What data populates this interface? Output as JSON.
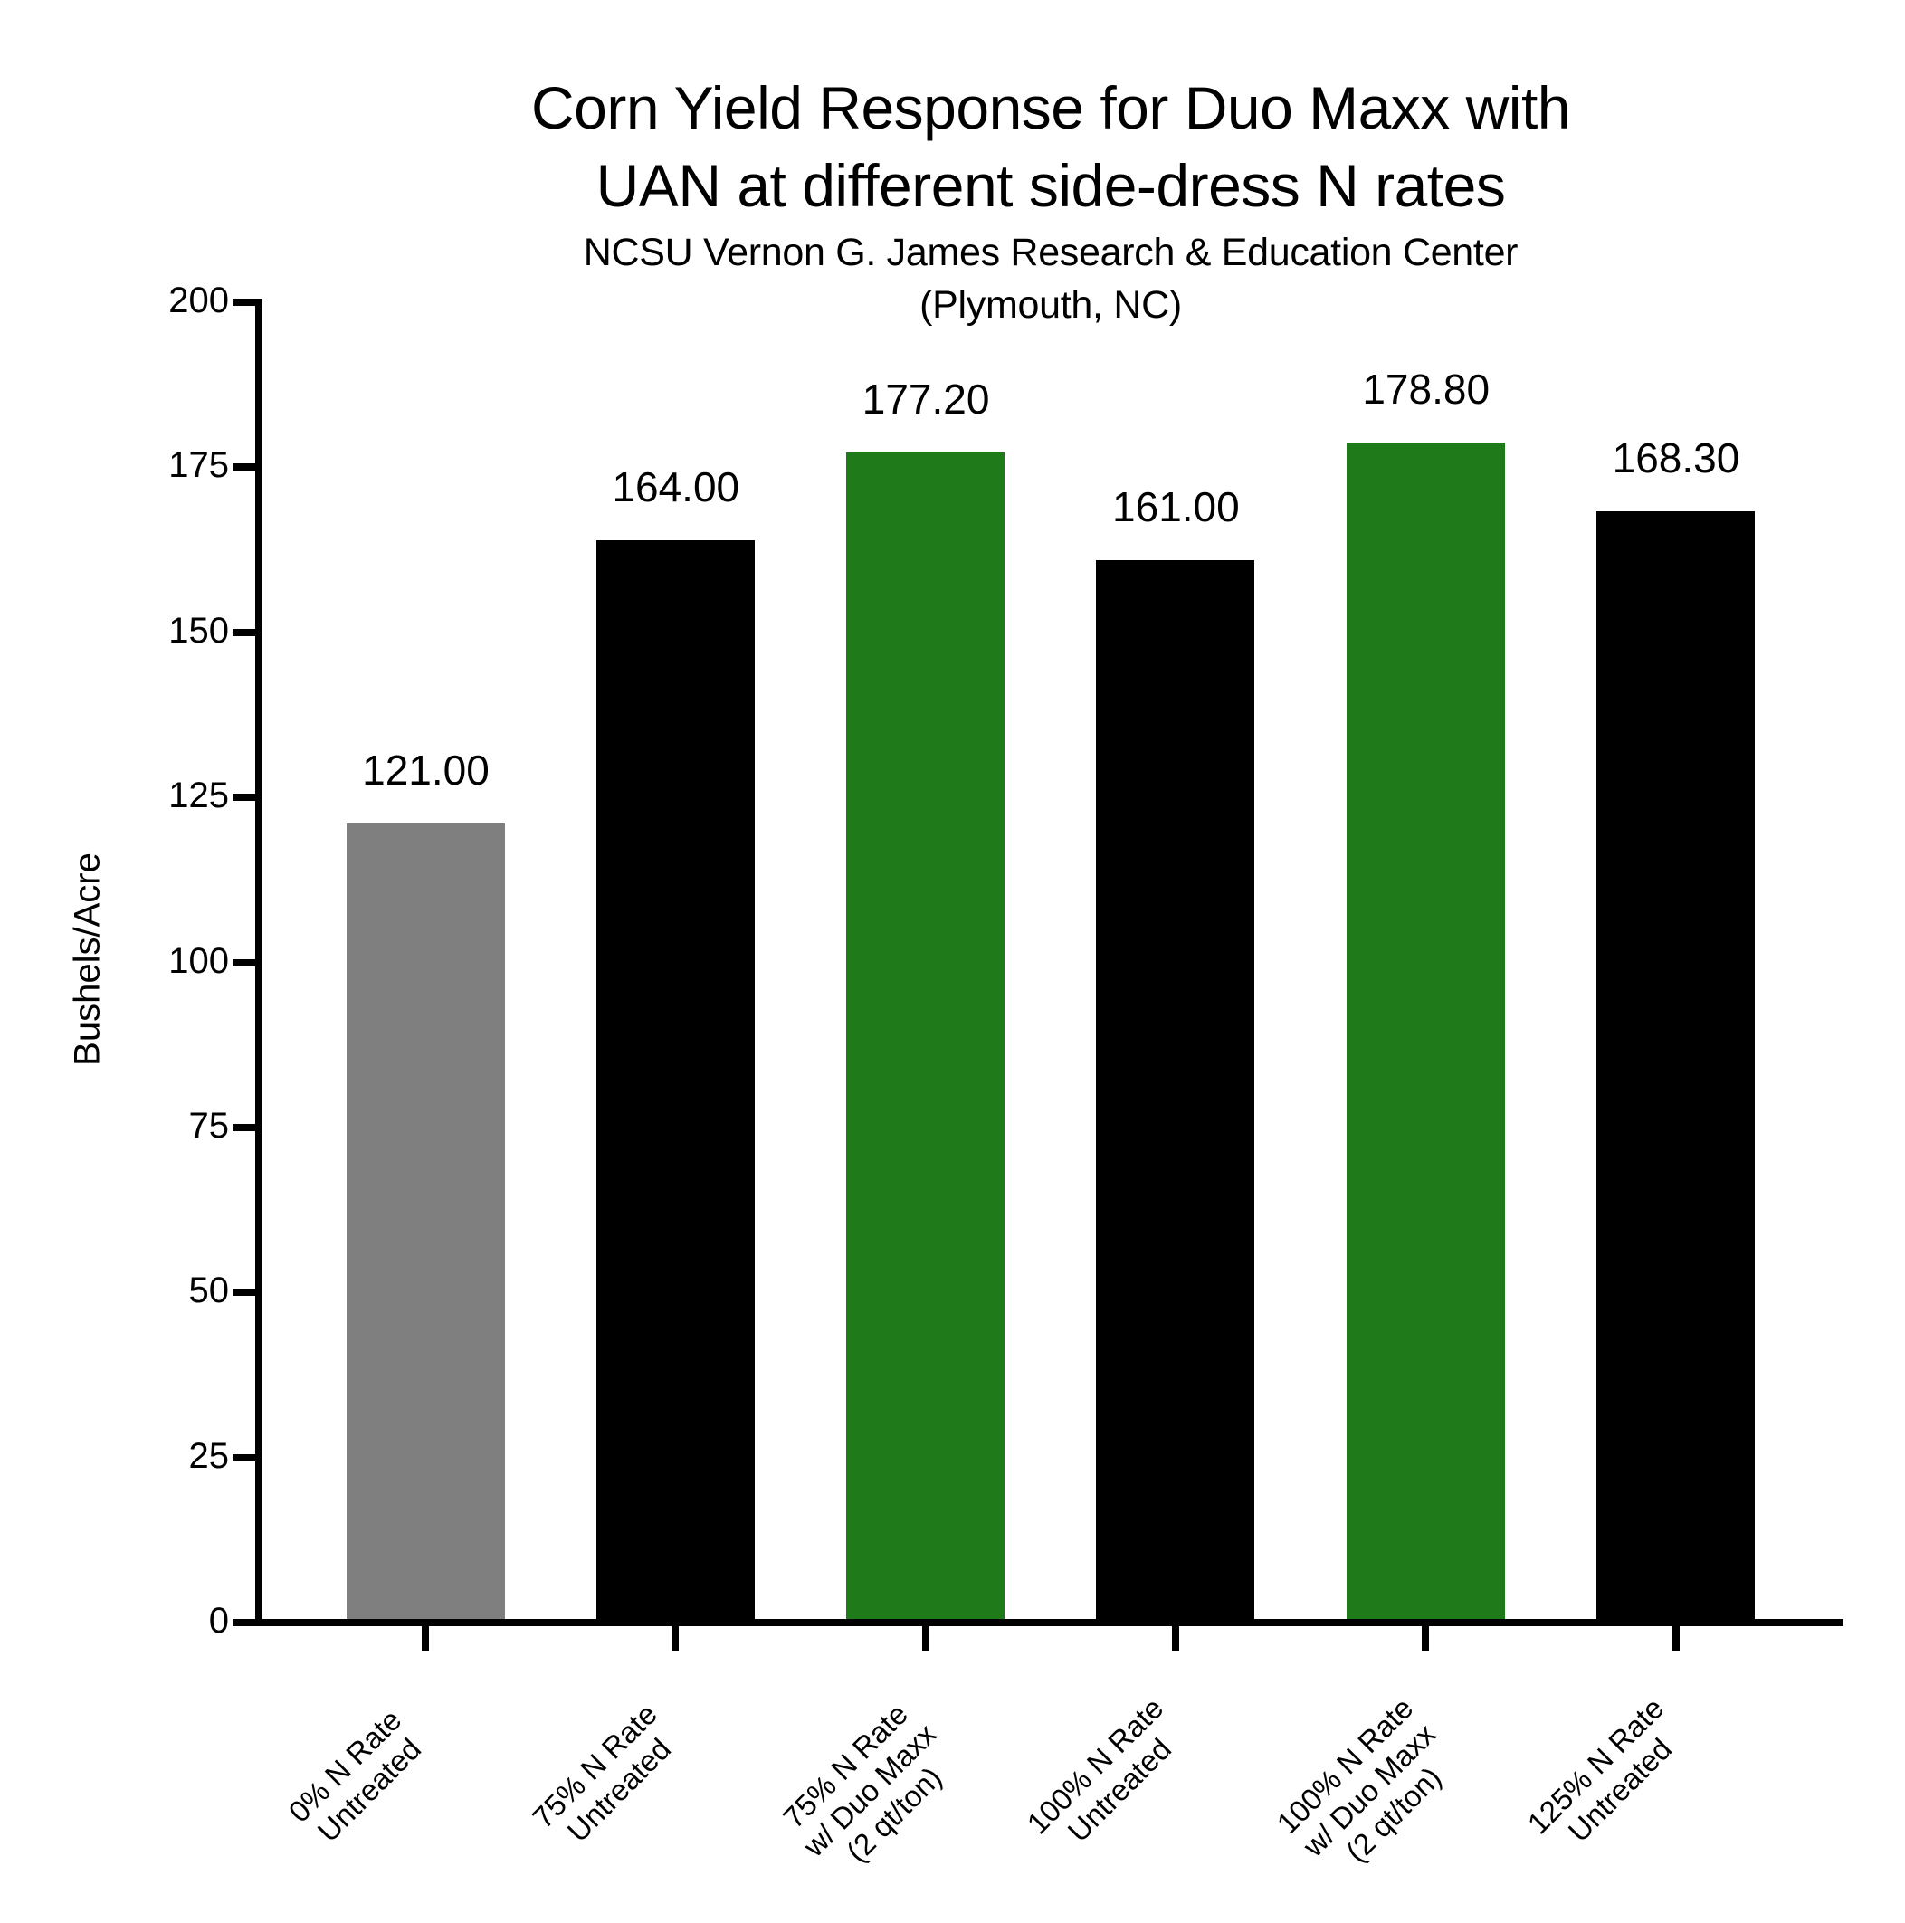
{
  "chart": {
    "title_line1": "Corn Yield Response for Duo Maxx with",
    "title_line2": "UAN at different side-dress N rates",
    "subtitle_line1": "NCSU Vernon G. James Research & Education Center",
    "subtitle_line2": "(Plymouth, NC)",
    "ylabel": "Bushels/Acre",
    "yticks": [
      "0",
      "25",
      "50",
      "75",
      "100",
      "125",
      "150",
      "175",
      "200"
    ],
    "bars": [
      {
        "line1": "0% N Rate",
        "line2": "Untreated",
        "line3": "",
        "value_label": "121.00"
      },
      {
        "line1": "75% N Rate",
        "line2": "Untreated",
        "line3": "",
        "value_label": "164.00"
      },
      {
        "line1": "75% N Rate",
        "line2": "w/ Duo Maxx",
        "line3": "(2 qt/ton)",
        "value_label": "177.20"
      },
      {
        "line1": "100% N Rate",
        "line2": "Untreated",
        "line3": "",
        "value_label": "161.00"
      },
      {
        "line1": "100% N Rate",
        "line2": "w/ Duo Maxx",
        "line3": "(2 qt/ton)",
        "value_label": "178.80"
      },
      {
        "line1": "125% N Rate",
        "line2": "Untreated",
        "line3": "",
        "value_label": "168.30"
      }
    ],
    "colors": {
      "control": "#7f7f7f",
      "untreated": "#000000",
      "duo_maxx": "#1f7a1a",
      "axis": "#000000",
      "background": "#ffffff"
    }
  },
  "chart_data": {
    "type": "bar",
    "title": "Corn Yield Response for Duo Maxx with UAN at different side-dress N rates",
    "subtitle": "NCSU Vernon G. James Research & Education Center (Plymouth, NC)",
    "categories": [
      "0% N Rate Untreated",
      "75% N Rate Untreated",
      "75% N Rate w/ Duo Maxx (2 qt/ton)",
      "100% N Rate Untreated",
      "100% N Rate w/ Duo Maxx (2 qt/ton)",
      "125% N Rate Untreated"
    ],
    "values": [
      121.0,
      164.0,
      177.2,
      161.0,
      178.8,
      168.3
    ],
    "bar_colors": [
      "#7f7f7f",
      "#000000",
      "#1f7a1a",
      "#000000",
      "#1f7a1a",
      "#000000"
    ],
    "data_labels": [
      "121.00",
      "164.00",
      "177.20",
      "161.00",
      "178.80",
      "168.30"
    ],
    "xlabel": "",
    "ylabel": "Bushels/Acre",
    "ylim": [
      0,
      200
    ],
    "yticks": [
      0,
      25,
      50,
      75,
      100,
      125,
      150,
      175,
      200
    ],
    "xtick_rotation": -45,
    "grid": false,
    "legend": null
  }
}
